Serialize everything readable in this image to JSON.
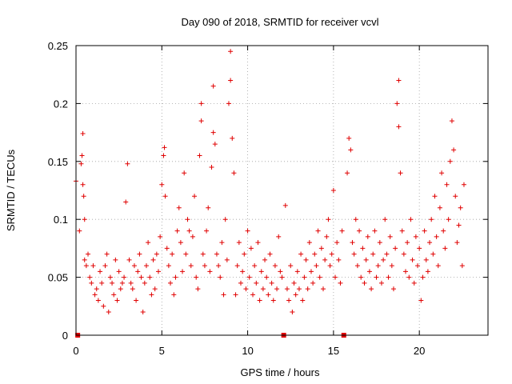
{
  "chart_data": {
    "type": "scatter",
    "title": "Day 090 of 2018, SRMTID for receiver vcvl",
    "xlabel": "GPS time / hours",
    "ylabel": "SRMTID / TECUs",
    "xlim": [
      0,
      24
    ],
    "ylim": [
      0,
      0.25
    ],
    "x_ticks": [
      0,
      5,
      10,
      15,
      20
    ],
    "x_tick_labels": [
      "0",
      "5",
      "10",
      "15",
      "20"
    ],
    "y_ticks": [
      0,
      0.05,
      0.1,
      0.15,
      0.2,
      0.25
    ],
    "y_tick_labels": [
      "0",
      "0.05",
      "0.1",
      "0.15",
      "0.2",
      "0.25"
    ],
    "grid": true,
    "marker": "+",
    "series_color": "#e00000",
    "gap_markers_x": [
      0.1,
      12.1,
      15.6
    ],
    "series": [
      {
        "name": "SRMTID",
        "points": [
          [
            0.0,
            0.133
          ],
          [
            0.2,
            0.09
          ],
          [
            0.3,
            0.148
          ],
          [
            0.35,
            0.155
          ],
          [
            0.4,
            0.174
          ],
          [
            0.4,
            0.13
          ],
          [
            0.45,
            0.12
          ],
          [
            0.5,
            0.1
          ],
          [
            0.5,
            0.065
          ],
          [
            0.6,
            0.06
          ],
          [
            0.7,
            0.07
          ],
          [
            0.8,
            0.05
          ],
          [
            0.9,
            0.045
          ],
          [
            1.0,
            0.06
          ],
          [
            1.1,
            0.035
          ],
          [
            1.2,
            0.04
          ],
          [
            1.3,
            0.03
          ],
          [
            1.4,
            0.055
          ],
          [
            1.5,
            0.045
          ],
          [
            1.6,
            0.025
          ],
          [
            1.7,
            0.06
          ],
          [
            1.8,
            0.07
          ],
          [
            1.9,
            0.02
          ],
          [
            2.0,
            0.05
          ],
          [
            2.1,
            0.045
          ],
          [
            2.2,
            0.035
          ],
          [
            2.3,
            0.065
          ],
          [
            2.4,
            0.03
          ],
          [
            2.5,
            0.055
          ],
          [
            2.6,
            0.04
          ],
          [
            2.7,
            0.045
          ],
          [
            2.8,
            0.05
          ],
          [
            2.9,
            0.115
          ],
          [
            3.0,
            0.148
          ],
          [
            3.1,
            0.065
          ],
          [
            3.2,
            0.045
          ],
          [
            3.3,
            0.04
          ],
          [
            3.4,
            0.06
          ],
          [
            3.5,
            0.03
          ],
          [
            3.6,
            0.055
          ],
          [
            3.7,
            0.07
          ],
          [
            3.8,
            0.05
          ],
          [
            3.9,
            0.02
          ],
          [
            4.0,
            0.045
          ],
          [
            4.1,
            0.06
          ],
          [
            4.2,
            0.08
          ],
          [
            4.3,
            0.05
          ],
          [
            4.4,
            0.035
          ],
          [
            4.5,
            0.065
          ],
          [
            4.6,
            0.04
          ],
          [
            4.7,
            0.07
          ],
          [
            4.8,
            0.055
          ],
          [
            4.9,
            0.085
          ],
          [
            5.0,
            0.13
          ],
          [
            5.1,
            0.155
          ],
          [
            5.15,
            0.162
          ],
          [
            5.2,
            0.12
          ],
          [
            5.3,
            0.075
          ],
          [
            5.4,
            0.06
          ],
          [
            5.5,
            0.045
          ],
          [
            5.6,
            0.07
          ],
          [
            5.7,
            0.035
          ],
          [
            5.8,
            0.05
          ],
          [
            5.9,
            0.09
          ],
          [
            6.0,
            0.11
          ],
          [
            6.1,
            0.08
          ],
          [
            6.2,
            0.055
          ],
          [
            6.3,
            0.14
          ],
          [
            6.4,
            0.07
          ],
          [
            6.5,
            0.1
          ],
          [
            6.6,
            0.09
          ],
          [
            6.7,
            0.06
          ],
          [
            6.8,
            0.085
          ],
          [
            6.9,
            0.12
          ],
          [
            7.0,
            0.05
          ],
          [
            7.1,
            0.04
          ],
          [
            7.2,
            0.155
          ],
          [
            7.3,
            0.2
          ],
          [
            7.3,
            0.185
          ],
          [
            7.4,
            0.07
          ],
          [
            7.5,
            0.06
          ],
          [
            7.6,
            0.09
          ],
          [
            7.7,
            0.11
          ],
          [
            7.8,
            0.055
          ],
          [
            7.9,
            0.145
          ],
          [
            8.0,
            0.215
          ],
          [
            8.0,
            0.175
          ],
          [
            8.1,
            0.165
          ],
          [
            8.2,
            0.07
          ],
          [
            8.3,
            0.06
          ],
          [
            8.4,
            0.05
          ],
          [
            8.5,
            0.08
          ],
          [
            8.6,
            0.035
          ],
          [
            8.7,
            0.1
          ],
          [
            8.8,
            0.065
          ],
          [
            8.9,
            0.2
          ],
          [
            9.0,
            0.245
          ],
          [
            9.0,
            0.22
          ],
          [
            9.1,
            0.17
          ],
          [
            9.2,
            0.14
          ],
          [
            9.3,
            0.035
          ],
          [
            9.4,
            0.06
          ],
          [
            9.5,
            0.08
          ],
          [
            9.6,
            0.045
          ],
          [
            9.7,
            0.055
          ],
          [
            9.8,
            0.07
          ],
          [
            9.9,
            0.04
          ],
          [
            10.0,
            0.09
          ],
          [
            10.1,
            0.05
          ],
          [
            10.2,
            0.075
          ],
          [
            10.3,
            0.035
          ],
          [
            10.4,
            0.06
          ],
          [
            10.5,
            0.045
          ],
          [
            10.6,
            0.08
          ],
          [
            10.7,
            0.03
          ],
          [
            10.8,
            0.055
          ],
          [
            10.9,
            0.04
          ],
          [
            11.0,
            0.065
          ],
          [
            11.1,
            0.05
          ],
          [
            11.2,
            0.035
          ],
          [
            11.3,
            0.07
          ],
          [
            11.4,
            0.045
          ],
          [
            11.5,
            0.03
          ],
          [
            11.6,
            0.06
          ],
          [
            11.7,
            0.04
          ],
          [
            11.8,
            0.085
          ],
          [
            11.9,
            0.055
          ],
          [
            12.0,
            0.05
          ],
          [
            12.2,
            0.112
          ],
          [
            12.3,
            0.04
          ],
          [
            12.4,
            0.03
          ],
          [
            12.5,
            0.06
          ],
          [
            12.6,
            0.02
          ],
          [
            12.7,
            0.045
          ],
          [
            12.8,
            0.035
          ],
          [
            12.9,
            0.055
          ],
          [
            13.0,
            0.04
          ],
          [
            13.1,
            0.07
          ],
          [
            13.2,
            0.03
          ],
          [
            13.3,
            0.05
          ],
          [
            13.4,
            0.065
          ],
          [
            13.5,
            0.04
          ],
          [
            13.6,
            0.08
          ],
          [
            13.7,
            0.055
          ],
          [
            13.8,
            0.045
          ],
          [
            13.9,
            0.07
          ],
          [
            14.0,
            0.06
          ],
          [
            14.1,
            0.09
          ],
          [
            14.2,
            0.05
          ],
          [
            14.3,
            0.075
          ],
          [
            14.4,
            0.04
          ],
          [
            14.5,
            0.065
          ],
          [
            14.6,
            0.085
          ],
          [
            14.7,
            0.1
          ],
          [
            14.8,
            0.06
          ],
          [
            14.9,
            0.07
          ],
          [
            15.0,
            0.125
          ],
          [
            15.1,
            0.05
          ],
          [
            15.2,
            0.08
          ],
          [
            15.3,
            0.065
          ],
          [
            15.4,
            0.045
          ],
          [
            15.5,
            0.09
          ],
          [
            15.8,
            0.14
          ],
          [
            15.9,
            0.17
          ],
          [
            16.0,
            0.16
          ],
          [
            16.1,
            0.08
          ],
          [
            16.2,
            0.07
          ],
          [
            16.3,
            0.1
          ],
          [
            16.4,
            0.06
          ],
          [
            16.5,
            0.09
          ],
          [
            16.6,
            0.05
          ],
          [
            16.7,
            0.075
          ],
          [
            16.8,
            0.045
          ],
          [
            16.9,
            0.065
          ],
          [
            17.0,
            0.085
          ],
          [
            17.1,
            0.055
          ],
          [
            17.2,
            0.04
          ],
          [
            17.3,
            0.07
          ],
          [
            17.4,
            0.09
          ],
          [
            17.5,
            0.05
          ],
          [
            17.6,
            0.06
          ],
          [
            17.7,
            0.08
          ],
          [
            17.8,
            0.045
          ],
          [
            17.9,
            0.065
          ],
          [
            18.0,
            0.1
          ],
          [
            18.1,
            0.07
          ],
          [
            18.2,
            0.05
          ],
          [
            18.3,
            0.085
          ],
          [
            18.4,
            0.06
          ],
          [
            18.5,
            0.04
          ],
          [
            18.6,
            0.075
          ],
          [
            18.7,
            0.2
          ],
          [
            18.8,
            0.22
          ],
          [
            18.8,
            0.18
          ],
          [
            18.9,
            0.14
          ],
          [
            19.0,
            0.09
          ],
          [
            19.1,
            0.07
          ],
          [
            19.2,
            0.055
          ],
          [
            19.3,
            0.08
          ],
          [
            19.4,
            0.05
          ],
          [
            19.5,
            0.1
          ],
          [
            19.6,
            0.065
          ],
          [
            19.7,
            0.045
          ],
          [
            19.8,
            0.085
          ],
          [
            19.9,
            0.06
          ],
          [
            20.0,
            0.075
          ],
          [
            20.1,
            0.03
          ],
          [
            20.2,
            0.05
          ],
          [
            20.3,
            0.09
          ],
          [
            20.4,
            0.065
          ],
          [
            20.5,
            0.055
          ],
          [
            20.6,
            0.08
          ],
          [
            20.7,
            0.1
          ],
          [
            20.8,
            0.07
          ],
          [
            20.9,
            0.12
          ],
          [
            21.0,
            0.085
          ],
          [
            21.1,
            0.06
          ],
          [
            21.2,
            0.11
          ],
          [
            21.3,
            0.14
          ],
          [
            21.4,
            0.09
          ],
          [
            21.5,
            0.075
          ],
          [
            21.6,
            0.13
          ],
          [
            21.7,
            0.1
          ],
          [
            21.8,
            0.15
          ],
          [
            21.9,
            0.185
          ],
          [
            22.0,
            0.16
          ],
          [
            22.1,
            0.12
          ],
          [
            22.2,
            0.08
          ],
          [
            22.3,
            0.095
          ],
          [
            22.4,
            0.11
          ],
          [
            22.5,
            0.06
          ],
          [
            22.6,
            0.13
          ]
        ]
      }
    ]
  }
}
